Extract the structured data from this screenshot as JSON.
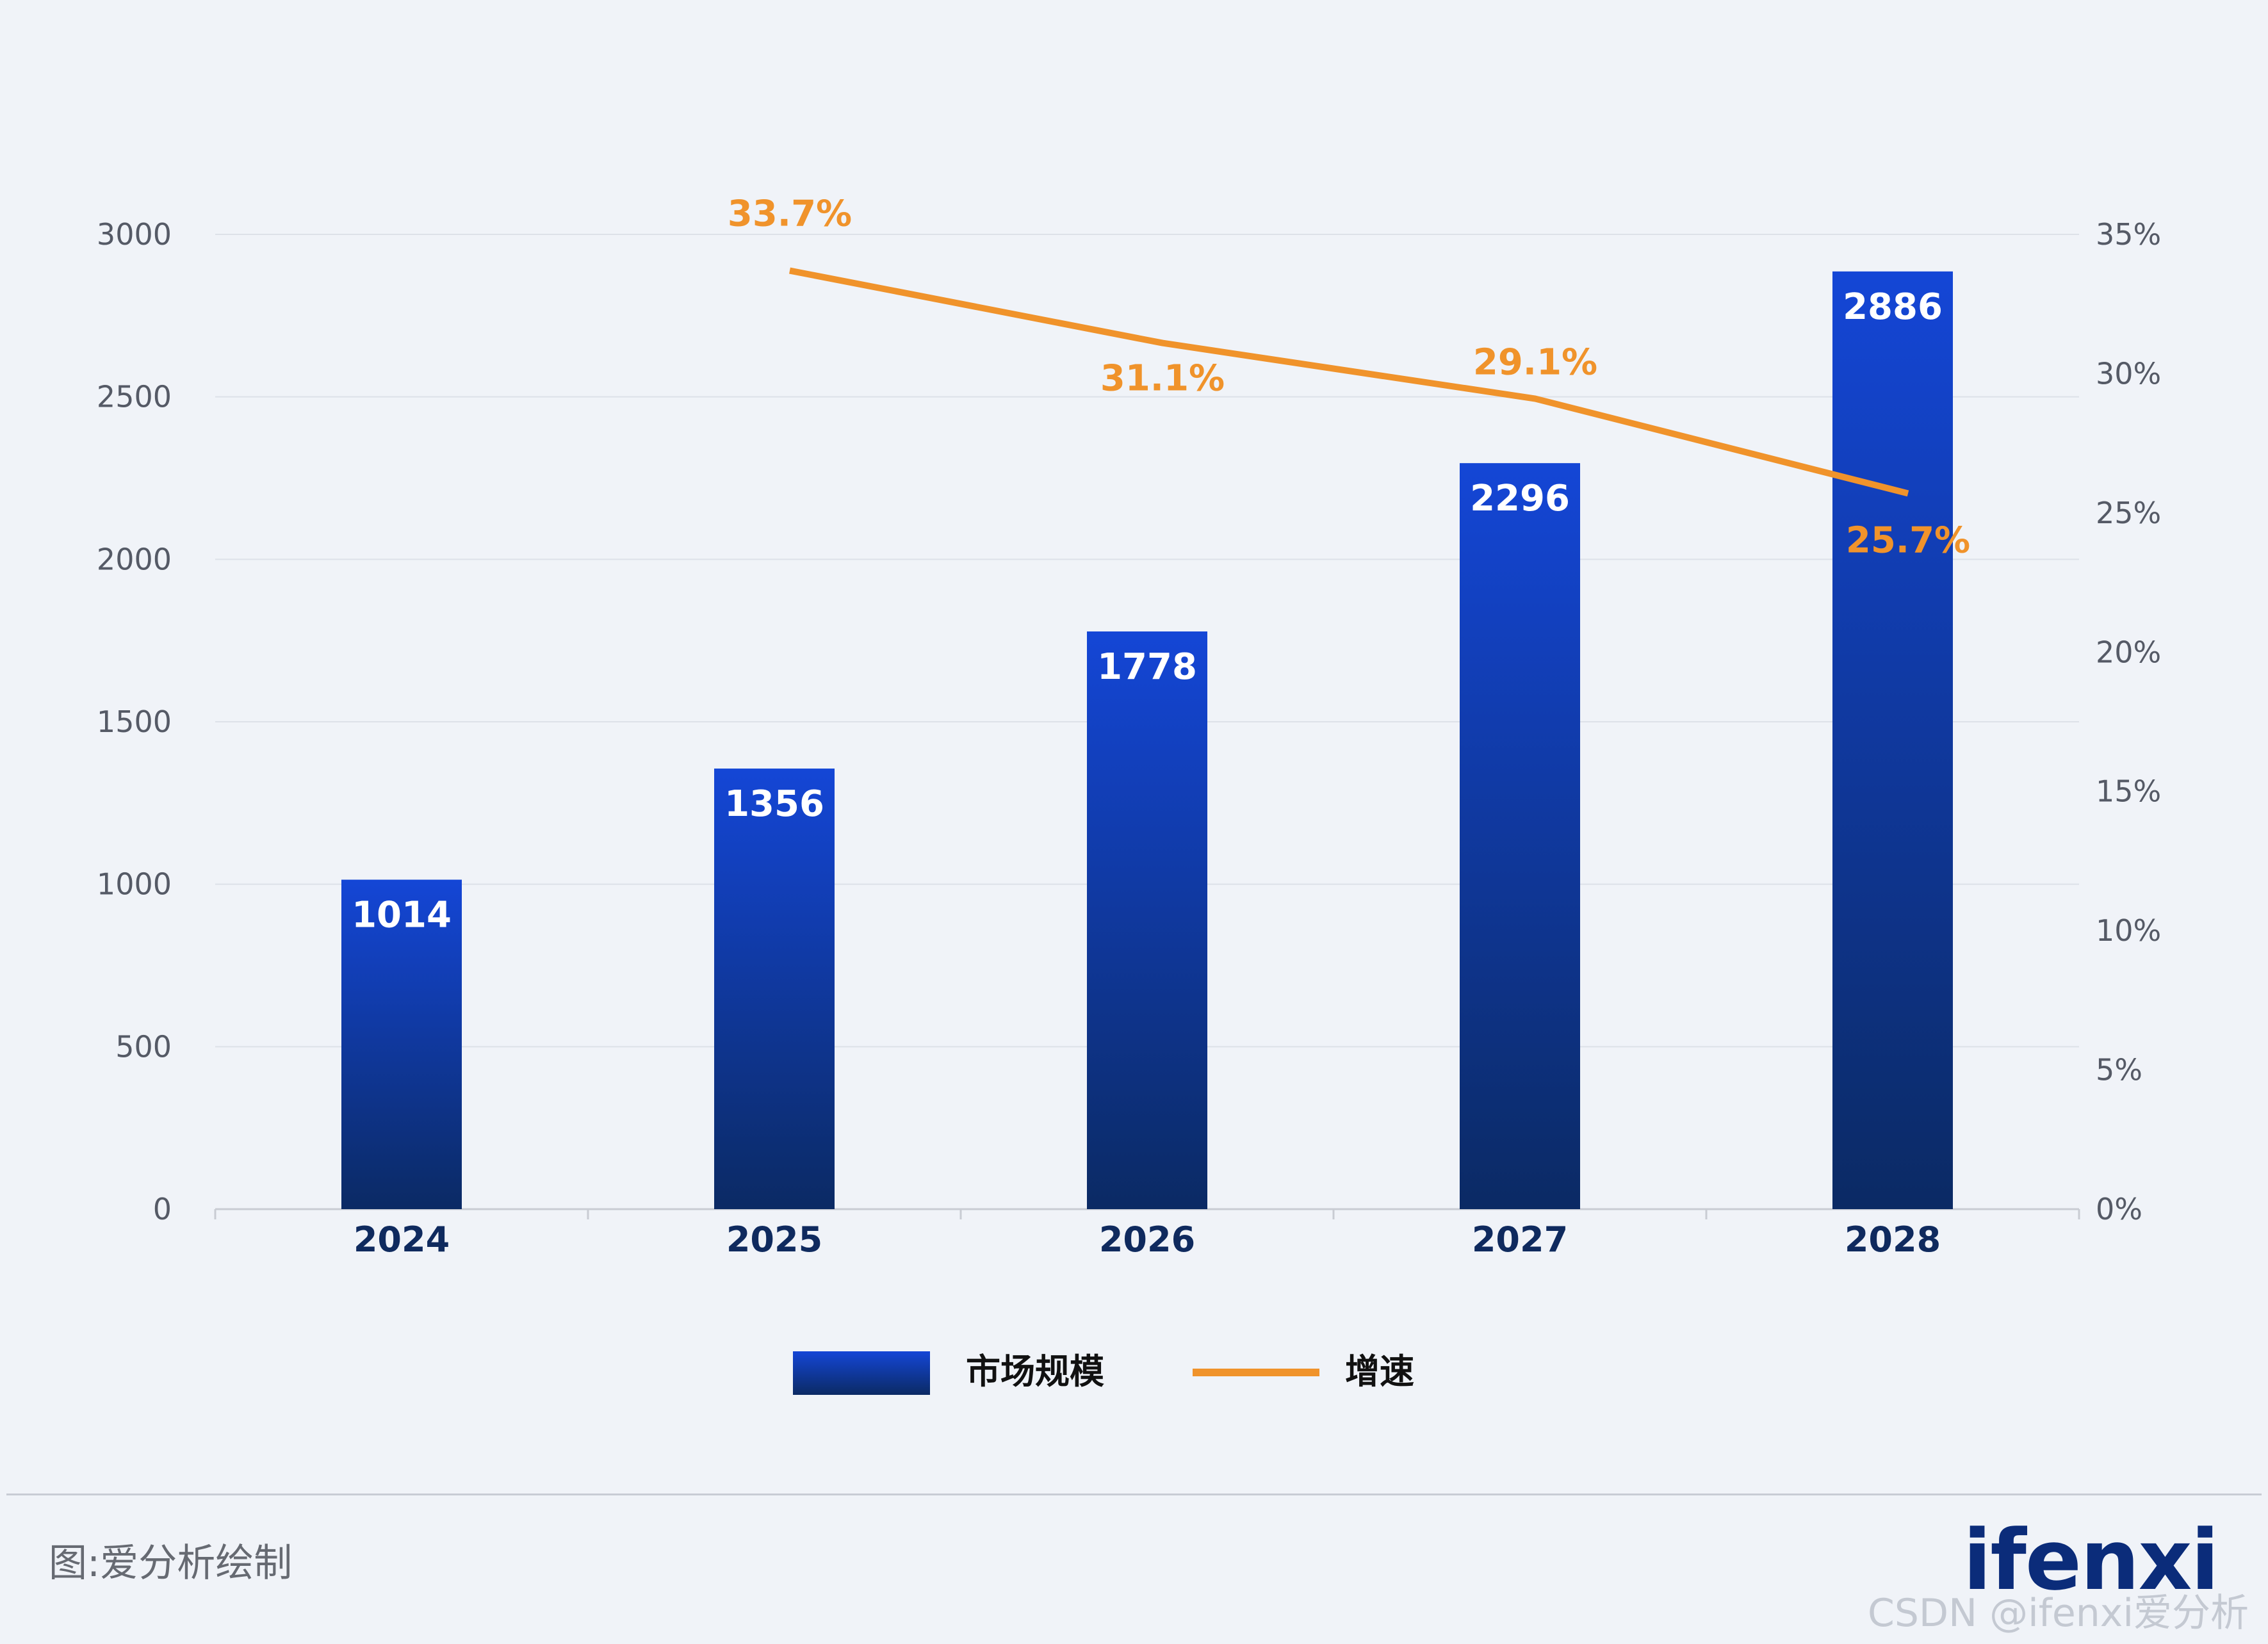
{
  "chart_data": {
    "type": "bar",
    "categories": [
      "2024",
      "2025",
      "2026",
      "2027",
      "2028"
    ],
    "series": [
      {
        "name": "市场规模",
        "type": "bar",
        "axis": "left",
        "values": [
          1014,
          1356,
          1778,
          2296,
          2886
        ],
        "labels": [
          "1014",
          "1356",
          "1778",
          "2296",
          "2886"
        ],
        "color": "#1446d6"
      },
      {
        "name": "增速",
        "type": "line",
        "axis": "right",
        "values": [
          null,
          33.7,
          31.1,
          29.1,
          25.7
        ],
        "labels": [
          "",
          "33.7%",
          "31.1%",
          "29.1%",
          "25.7%"
        ],
        "color": "#f0932b"
      }
    ],
    "y_left": {
      "min": 0,
      "max": 3000,
      "ticks": [
        "0",
        "500",
        "1000",
        "1500",
        "2000",
        "2500",
        "3000"
      ]
    },
    "y_right": {
      "min": 0,
      "max": 35,
      "ticks": [
        "0%",
        "5%",
        "10%",
        "15%",
        "20%",
        "25%",
        "30%",
        "35%"
      ]
    },
    "grid": true,
    "legend": {
      "position": "bottom",
      "items": [
        "市场规模",
        "增速"
      ]
    }
  },
  "source_note": "图:爱分析绘制",
  "logo_text": "ifenxi",
  "watermark": "CSDN @ifenxi爱分析"
}
